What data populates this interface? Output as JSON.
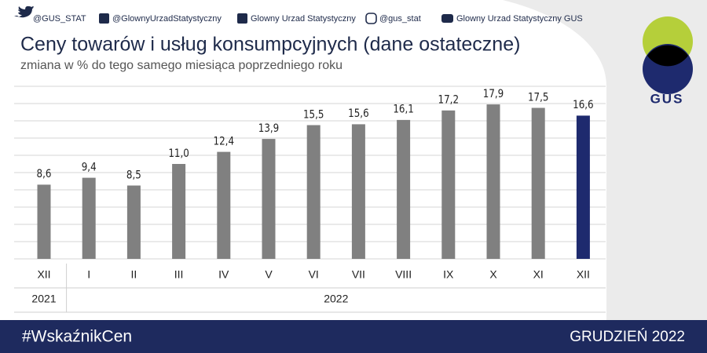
{
  "header": {
    "social": [
      "@GUS_STAT",
      "@GlownyUrzadStatystyczny",
      "Glowny Urzad Statystyczny",
      "@gus_stat",
      "Glowny Urzad Statystyczny GUS"
    ],
    "logo": "GUS"
  },
  "chart_data": {
    "type": "bar",
    "title": "Ceny towarów i usług konsumpcyjnych (dane ostateczne)",
    "subtitle": "zmiana w % do tego samego miesiąca poprzedniego roku",
    "categories": [
      "XII",
      "I",
      "II",
      "III",
      "IV",
      "V",
      "VI",
      "VII",
      "VIII",
      "IX",
      "X",
      "XI",
      "XII"
    ],
    "x_group_labels": [
      "2021",
      "2022",
      null,
      null,
      null,
      null,
      null,
      null,
      null,
      null,
      null,
      null,
      null
    ],
    "values": [
      8.6,
      9.4,
      8.5,
      11.0,
      12.4,
      13.9,
      15.5,
      15.6,
      16.1,
      17.2,
      17.9,
      17.5,
      16.6
    ],
    "value_labels": [
      "8,6",
      "9,4",
      "8,5",
      "11,0",
      "12,4",
      "13,9",
      "15,5",
      "15,6",
      "16,1",
      "17,2",
      "17,9",
      "17,5",
      "16,6"
    ],
    "colors": [
      "#808080",
      "#808080",
      "#808080",
      "#808080",
      "#808080",
      "#808080",
      "#808080",
      "#808080",
      "#808080",
      "#808080",
      "#808080",
      "#808080",
      "#1e2a6e"
    ],
    "ylim": [
      0,
      20
    ],
    "yticks": [
      0,
      2,
      4,
      6,
      8,
      10,
      12,
      14,
      16,
      18,
      20
    ],
    "grid": true
  },
  "footer": {
    "hashtag": "#WskaźnikCen",
    "period": "GRUDZIEŃ 2022"
  }
}
